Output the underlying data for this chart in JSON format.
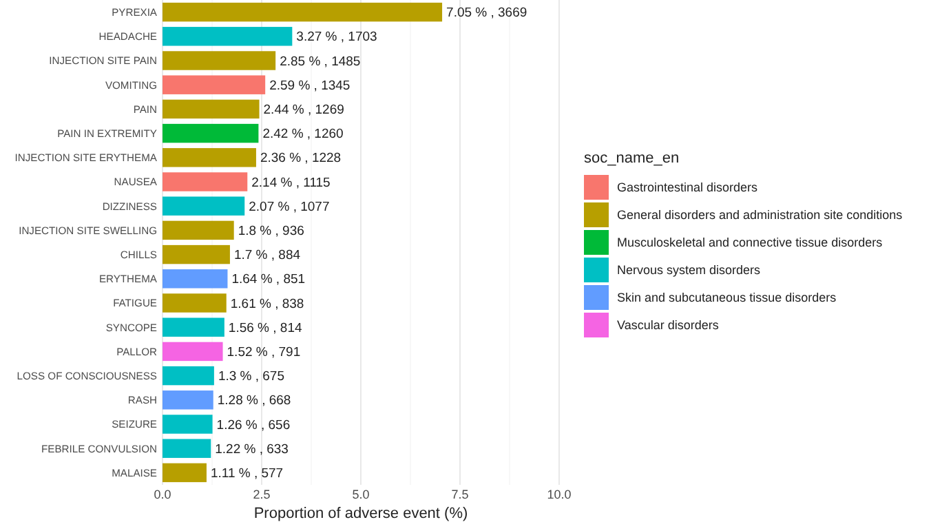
{
  "chart_data": {
    "type": "bar",
    "orientation": "horizontal",
    "xlabel": "Proportion of adverse event (%)",
    "legend_title": "soc_name_en",
    "legend": "right",
    "grid": "x",
    "categories": [
      "PYREXIA",
      "HEADACHE",
      "INJECTION SITE PAIN",
      "VOMITING",
      "PAIN",
      "PAIN IN EXTREMITY",
      "INJECTION SITE ERYTHEMA",
      "NAUSEA",
      "DIZZINESS",
      "INJECTION SITE SWELLING",
      "CHILLS",
      "ERYTHEMA",
      "FATIGUE",
      "SYNCOPE",
      "PALLOR",
      "LOSS OF CONSCIOUSNESS",
      "RASH",
      "SEIZURE",
      "FEBRILE CONVULSION",
      "MALAISE"
    ],
    "xlim": [
      0,
      10
    ],
    "xticks": [
      {
        "value": 0,
        "label": "0.0"
      },
      2.5,
      {
        "value": 5,
        "label": "5.0"
      },
      7.5,
      {
        "value": 10,
        "label": "10.0"
      }
    ],
    "series": [
      {
        "name": "Gastrointestinal disorders",
        "color": "#f8766d",
        "values": [
          null,
          null,
          null,
          2.59,
          null,
          null,
          null,
          2.14,
          null,
          null,
          null,
          null,
          null,
          null,
          null,
          null,
          null,
          null,
          null,
          null
        ],
        "value_labels": [
          null,
          null,
          null,
          "2.59 % , 1345",
          null,
          null,
          null,
          "2.14 % , 1115",
          null,
          null,
          null,
          null,
          null,
          null,
          null,
          null,
          null,
          null,
          null,
          null
        ]
      },
      {
        "name": "General disorders and administration site conditions",
        "color": "#b79f00",
        "values": [
          7.05,
          null,
          2.85,
          null,
          2.44,
          null,
          2.36,
          null,
          null,
          1.8,
          1.7,
          null,
          1.61,
          null,
          null,
          null,
          null,
          null,
          null,
          1.11
        ],
        "value_labels": [
          "7.05 % , 3669",
          null,
          "2.85 % , 1485",
          null,
          "2.44 % , 1269",
          null,
          "2.36 % , 1228",
          null,
          null,
          "1.8 % , 936",
          "1.7 % , 884",
          null,
          "1.61 % , 838",
          null,
          null,
          null,
          null,
          null,
          null,
          "1.11 % , 577"
        ]
      },
      {
        "name": "Musculoskeletal and connective tissue disorders",
        "color": "#00ba38",
        "values": [
          null,
          null,
          null,
          null,
          null,
          2.42,
          null,
          null,
          null,
          null,
          null,
          null,
          null,
          null,
          null,
          null,
          null,
          null,
          null,
          null
        ],
        "value_labels": [
          null,
          null,
          null,
          null,
          null,
          "2.42 % , 1260",
          null,
          null,
          null,
          null,
          null,
          null,
          null,
          null,
          null,
          null,
          null,
          null,
          null,
          null
        ]
      },
      {
        "name": "Nervous system disorders",
        "color": "#00bfc4",
        "values": [
          null,
          3.27,
          null,
          null,
          null,
          null,
          null,
          null,
          2.07,
          null,
          null,
          null,
          null,
          1.56,
          null,
          1.3,
          null,
          1.26,
          1.22,
          null
        ],
        "value_labels": [
          null,
          "3.27 % , 1703",
          null,
          null,
          null,
          null,
          null,
          null,
          "2.07 % , 1077",
          null,
          null,
          null,
          null,
          "1.56 % , 814",
          null,
          "1.3 % , 675",
          null,
          "1.26 % , 656",
          "1.22 % , 633",
          null
        ]
      },
      {
        "name": "Skin and subcutaneous tissue disorders",
        "color": "#619cff",
        "values": [
          null,
          null,
          null,
          null,
          null,
          null,
          null,
          null,
          null,
          null,
          null,
          1.64,
          null,
          null,
          null,
          null,
          1.28,
          null,
          null,
          null
        ],
        "value_labels": [
          null,
          null,
          null,
          null,
          null,
          null,
          null,
          null,
          null,
          null,
          null,
          "1.64 % , 851",
          null,
          null,
          null,
          null,
          "1.28 % , 668",
          null,
          null,
          null
        ]
      },
      {
        "name": "Vascular disorders",
        "color": "#f564e3",
        "values": [
          null,
          null,
          null,
          null,
          null,
          null,
          null,
          null,
          null,
          null,
          null,
          null,
          null,
          null,
          1.52,
          null,
          null,
          null,
          null,
          null
        ],
        "value_labels": [
          null,
          null,
          null,
          null,
          null,
          null,
          null,
          null,
          null,
          null,
          null,
          null,
          null,
          null,
          "1.52 % , 791",
          null,
          null,
          null,
          null,
          null
        ]
      }
    ]
  }
}
